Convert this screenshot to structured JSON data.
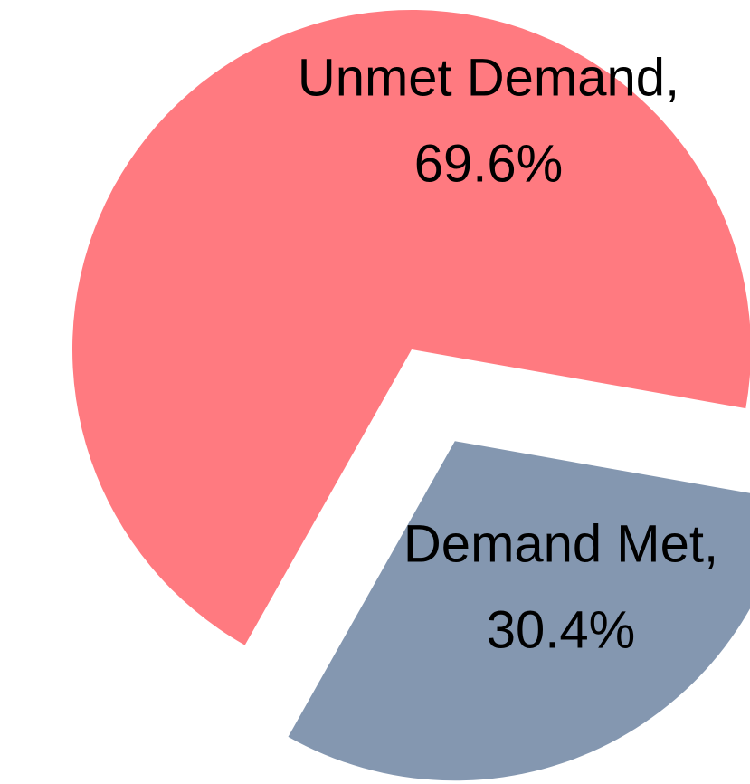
{
  "chart_data": {
    "type": "pie",
    "categories": [
      "Unmet Demand,",
      "Demand Met,"
    ],
    "values": [
      69.6,
      30.4
    ],
    "value_labels": [
      "69.6%",
      "30.4%"
    ],
    "colors": [
      "#ff7a80",
      "#8497b0"
    ]
  }
}
